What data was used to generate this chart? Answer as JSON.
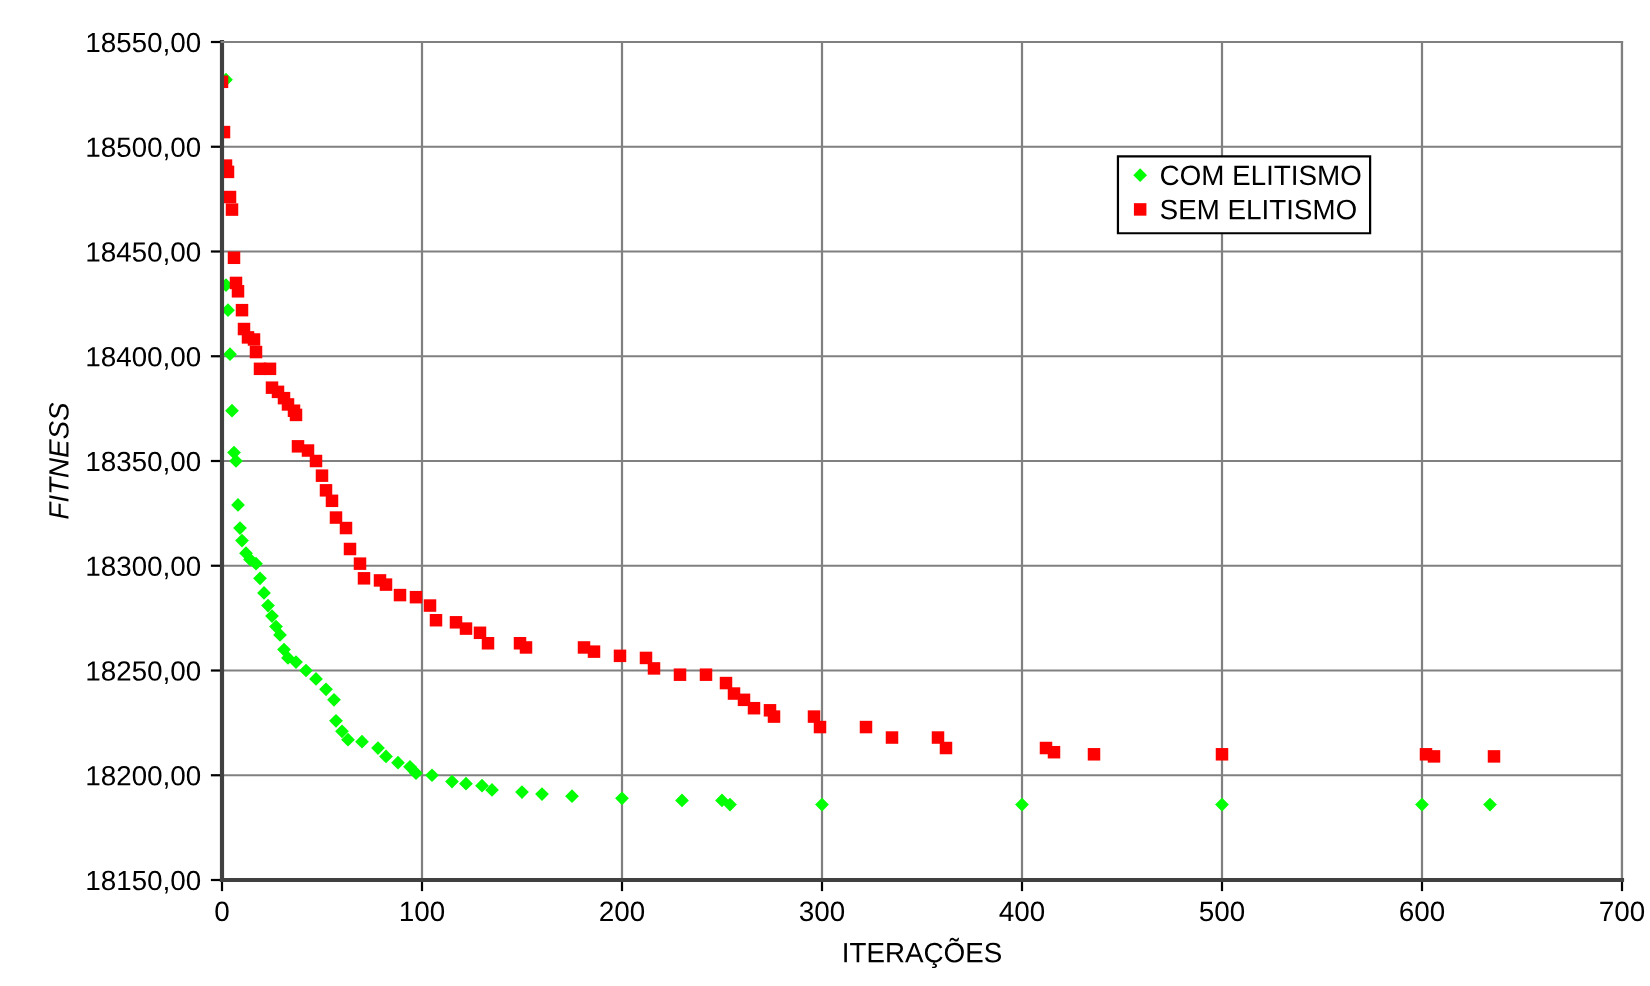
{
  "chart_data": {
    "type": "scatter",
    "xlabel": "ITERAÇÕES",
    "ylabel": "FITNESS",
    "xlim": [
      0,
      700
    ],
    "xticks": [
      0,
      100,
      200,
      300,
      400,
      500,
      600,
      700
    ],
    "ylim": [
      18150,
      18550
    ],
    "yticks": [
      {
        "value": 18150,
        "label": "18150,00"
      },
      {
        "value": 18200,
        "label": "18200,00"
      },
      {
        "value": 18250,
        "label": "18250,00"
      },
      {
        "value": 18300,
        "label": "18300,00"
      },
      {
        "value": 18350,
        "label": "18350,00"
      },
      {
        "value": 18400,
        "label": "18400,00"
      },
      {
        "value": 18450,
        "label": "18450,00"
      },
      {
        "value": 18500,
        "label": "18500,00"
      },
      {
        "value": 18550,
        "label": "18550,00"
      }
    ],
    "grid": true,
    "legend": "top right",
    "series": [
      {
        "name": "COM ELITISMO",
        "color": "#00ff00",
        "marker": "diamond",
        "x": [
          2,
          2,
          3,
          4,
          5,
          6,
          7,
          8,
          9,
          10,
          12,
          14,
          17,
          19,
          21,
          23,
          25,
          27,
          29,
          31,
          33,
          37,
          42,
          47,
          52,
          56,
          57,
          60,
          63,
          70,
          78,
          82,
          88,
          94,
          97,
          105,
          115,
          122,
          130,
          135,
          150,
          160,
          175,
          200,
          230,
          250,
          254,
          300,
          400,
          500,
          600,
          634
        ],
        "values": [
          18532,
          18434,
          18422,
          18401,
          18374,
          18354,
          18350,
          18329,
          18318,
          18312,
          18306,
          18303,
          18301,
          18294,
          18287,
          18281,
          18276,
          18271,
          18267,
          18260,
          18256,
          18254,
          18250,
          18246,
          18241,
          18236,
          18226,
          18221,
          18217,
          18216,
          18213,
          18209,
          18206,
          18204,
          18201,
          18200,
          18197,
          18196,
          18195,
          18193,
          18192,
          18191,
          18190,
          18189,
          18188,
          18188,
          18186,
          18186,
          18186,
          18186,
          18186,
          18186
        ]
      },
      {
        "name": "SEM ELITISMO",
        "color": "#ff0000",
        "marker": "square",
        "x": [
          0,
          1,
          2,
          3,
          4,
          5,
          6,
          7,
          8,
          10,
          11,
          13,
          16,
          17,
          19,
          24,
          25,
          28,
          31,
          33,
          36,
          37,
          38,
          43,
          47,
          50,
          52,
          55,
          57,
          62,
          64,
          69,
          71,
          79,
          82,
          89,
          97,
          104,
          107,
          117,
          122,
          129,
          133,
          149,
          152,
          181,
          186,
          199,
          212,
          216,
          229,
          242,
          252,
          256,
          261,
          266,
          274,
          276,
          296,
          299,
          322,
          335,
          358,
          362,
          412,
          416,
          436,
          500,
          602,
          606,
          636
        ],
        "values": [
          18531,
          18507,
          18491,
          18488,
          18476,
          18470,
          18447,
          18435,
          18431,
          18422,
          18413,
          18409,
          18408,
          18402,
          18394,
          18394,
          18385,
          18383,
          18380,
          18377,
          18374,
          18372,
          18357,
          18355,
          18350,
          18343,
          18336,
          18331,
          18323,
          18318,
          18308,
          18301,
          18294,
          18293,
          18291,
          18286,
          18285,
          18281,
          18274,
          18273,
          18270,
          18268,
          18263,
          18263,
          18261,
          18261,
          18259,
          18257,
          18256,
          18251,
          18248,
          18248,
          18244,
          18239,
          18236,
          18232,
          18231,
          18228,
          18228,
          18223,
          18223,
          18218,
          18218,
          18213,
          18213,
          18211,
          18210,
          18210,
          18210,
          18209,
          18209
        ]
      }
    ]
  }
}
